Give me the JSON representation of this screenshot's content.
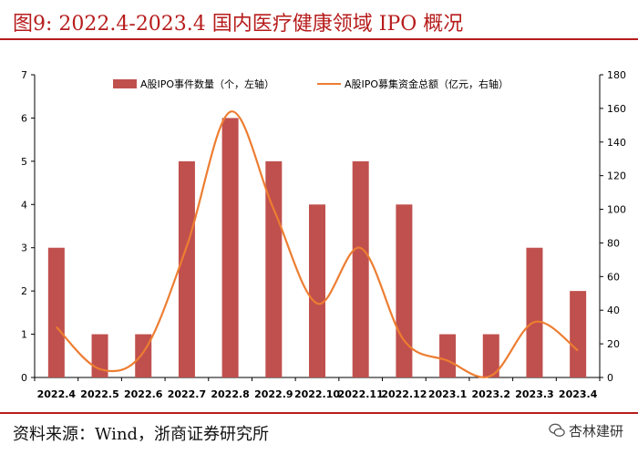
{
  "figure": {
    "title": "图9:   2022.4-2023.4 国内医疗健康领域 IPO 概况",
    "source": "资料来源：Wind，浙商证券研究所",
    "watermark": "杏林建研",
    "colors": {
      "accent": "#b71c1c",
      "bar": "#c0504d",
      "line": "#ed7d31"
    }
  },
  "chart_data": {
    "type": "bar+line",
    "categories": [
      "2022.4",
      "2022.5",
      "2022.6",
      "2022.7",
      "2022.8",
      "2022.9",
      "2022.10",
      "2022.11",
      "2022.12",
      "2023.1",
      "2023.2",
      "2023.3",
      "2023.4"
    ],
    "series": [
      {
        "name": "A股IPO事件数量（个，左轴）",
        "type": "bar",
        "axis": "left",
        "values": [
          3,
          1,
          1,
          5,
          6,
          5,
          4,
          5,
          4,
          1,
          1,
          3,
          2
        ]
      },
      {
        "name": "A股IPO募集资金总额（亿元，右轴）",
        "type": "line",
        "axis": "right",
        "values": [
          30,
          5,
          15,
          78,
          158,
          100,
          44,
          77,
          22,
          10,
          1,
          33,
          16
        ]
      }
    ],
    "y_left": {
      "min": 0,
      "max": 7,
      "ticks": [
        "0",
        "1",
        "2",
        "3",
        "4",
        "5",
        "6",
        "7"
      ]
    },
    "y_right": {
      "min": 0,
      "max": 180,
      "ticks": [
        "0",
        "20",
        "40",
        "60",
        "80",
        "100",
        "120",
        "140",
        "160",
        "180"
      ]
    },
    "legend_position": "top",
    "grid": false
  }
}
